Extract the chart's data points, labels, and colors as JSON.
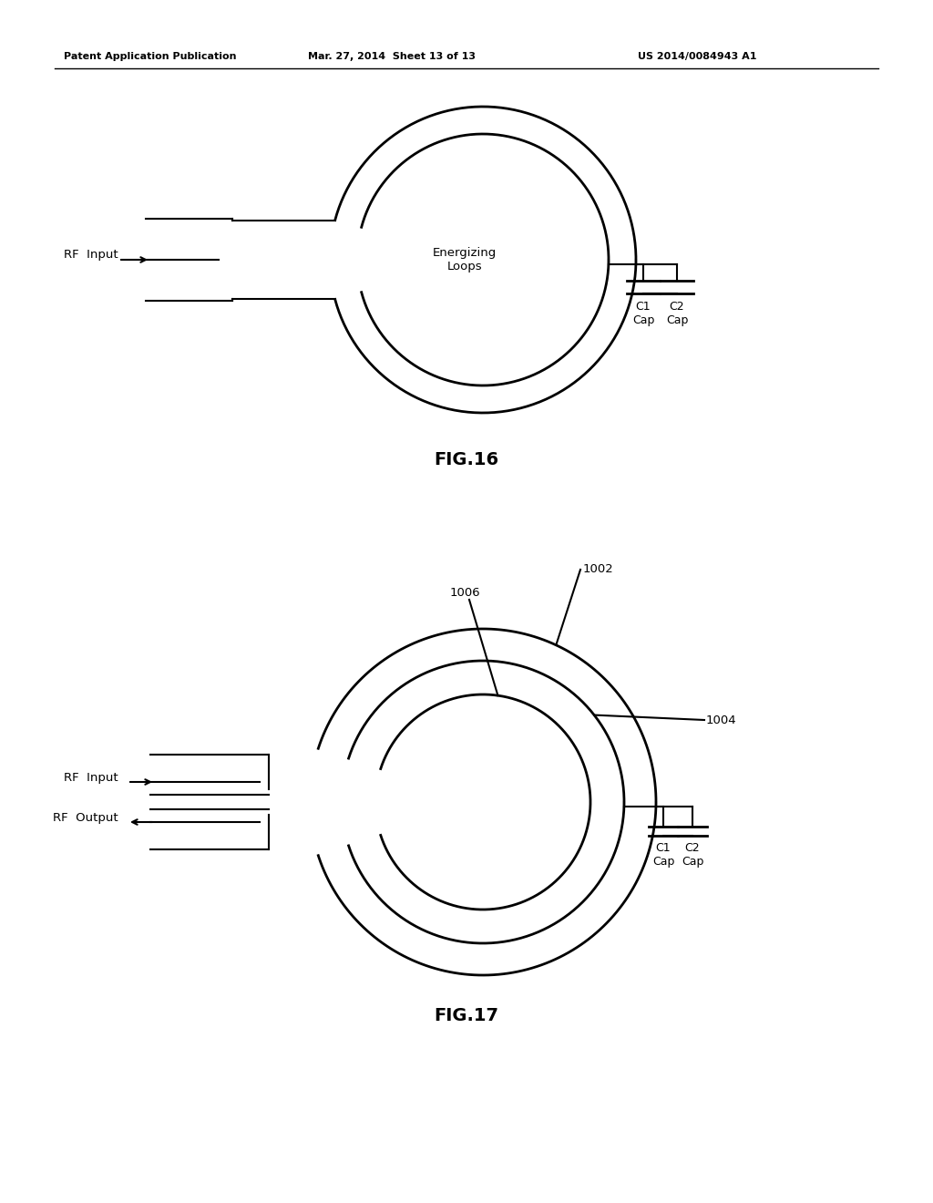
{
  "bg_color": "#ffffff",
  "line_color": "#000000",
  "header_left": "Patent Application Publication",
  "header_mid": "Mar. 27, 2014  Sheet 13 of 13",
  "header_right": "US 2014/0084943 A1",
  "fig16_label": "FIG.16",
  "fig17_label": "FIG.17",
  "rf_input_label": "RF  Input",
  "rf_output_label": "RF  Output",
  "energizing_loops_label": "Energizing\nLoops",
  "label_1002": "1002",
  "label_1004": "1004",
  "label_1006": "1006"
}
